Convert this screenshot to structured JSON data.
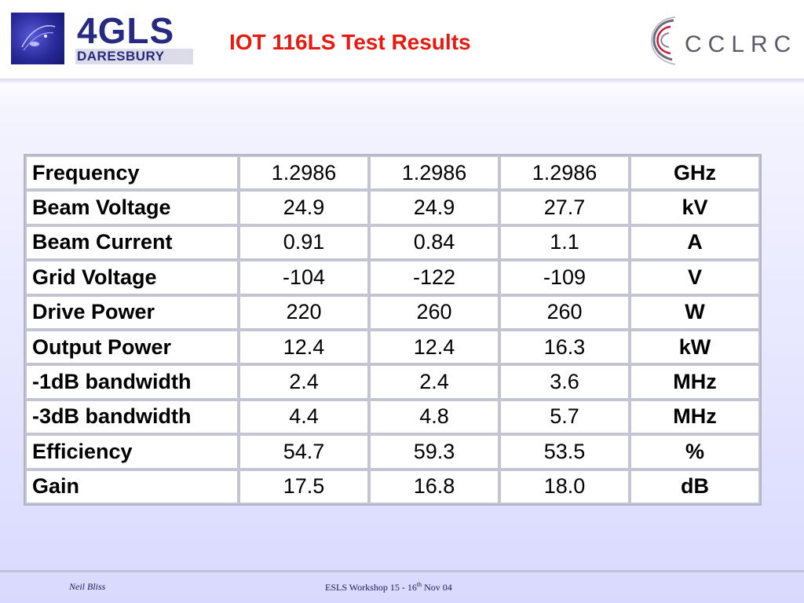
{
  "header": {
    "title": "IOT 116LS Test Results",
    "logo_left": {
      "line1": "4GLS",
      "line2": "DARESBURY"
    },
    "logo_right": {
      "text": "CCLRC"
    }
  },
  "table": {
    "rows": [
      {
        "label": "Frequency",
        "values": [
          "1.2986",
          "1.2986",
          "1.2986"
        ],
        "unit": "GHz"
      },
      {
        "label": "Beam Voltage",
        "values": [
          "24.9",
          "24.9",
          "27.7"
        ],
        "unit": "kV"
      },
      {
        "label": "Beam Current",
        "values": [
          "0.91",
          "0.84",
          "1.1"
        ],
        "unit": "A"
      },
      {
        "label": "Grid Voltage",
        "values": [
          "-104",
          "-122",
          "-109"
        ],
        "unit": "V"
      },
      {
        "label": "Drive Power",
        "values": [
          "220",
          "260",
          "260"
        ],
        "unit": "W"
      },
      {
        "label": "Output Power",
        "values": [
          "12.4",
          "12.4",
          "16.3"
        ],
        "unit": "kW"
      },
      {
        "label": "-1dB bandwidth",
        "values": [
          "2.4",
          "2.4",
          "3.6"
        ],
        "unit": "MHz"
      },
      {
        "label": "-3dB bandwidth",
        "values": [
          "4.4",
          "4.8",
          "5.7"
        ],
        "unit": "MHz"
      },
      {
        "label": "Efficiency",
        "values": [
          "54.7",
          "59.3",
          "53.5"
        ],
        "unit": "%"
      },
      {
        "label": "Gain",
        "values": [
          "17.5",
          "16.8",
          "18.0"
        ],
        "unit": "dB"
      }
    ]
  },
  "footer": {
    "author": "Neil Bliss",
    "event_prefix": "ESLS Workshop  15 - 16",
    "event_sup": "th",
    "event_suffix": "  Nov 04"
  },
  "colors": {
    "title": "#e8190e",
    "logo_blue": "#262a80"
  }
}
